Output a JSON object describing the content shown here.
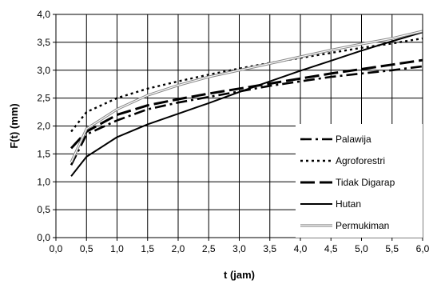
{
  "chart_data": {
    "type": "line",
    "xlabel": "t (jam)",
    "ylabel": "F(t) (mm)",
    "xlim": [
      0,
      6
    ],
    "ylim": [
      0,
      4
    ],
    "x_ticks": [
      "0,0",
      "0,5",
      "1,0",
      "1,5",
      "2,0",
      "2,5",
      "3,0",
      "3,5",
      "4,0",
      "4,5",
      "5,0",
      "5,5",
      "6,0"
    ],
    "y_ticks": [
      "0,0",
      "0,5",
      "1,0",
      "1,5",
      "2,0",
      "2,5",
      "3,0",
      "3,5",
      "4,0"
    ],
    "grid": true,
    "legend_position": "bottom-right",
    "series": [
      {
        "name": "Palawija",
        "style": "dash-dot",
        "color": "#000000",
        "x": [
          0.25,
          0.5,
          1.0,
          1.5,
          2.0,
          2.5,
          3.0,
          3.5,
          4.0,
          4.5,
          5.0,
          5.5,
          6.0
        ],
        "y": [
          1.3,
          1.85,
          2.1,
          2.3,
          2.42,
          2.52,
          2.62,
          2.72,
          2.8,
          2.88,
          2.94,
          3.0,
          3.07
        ]
      },
      {
        "name": "Agroforestri",
        "style": "dotted",
        "color": "#000000",
        "x": [
          0.25,
          0.5,
          1.0,
          1.5,
          2.0,
          2.5,
          3.0,
          3.5,
          4.0,
          4.5,
          5.0,
          5.5,
          6.0
        ],
        "y": [
          1.9,
          2.25,
          2.5,
          2.67,
          2.8,
          2.92,
          3.03,
          3.13,
          3.22,
          3.31,
          3.4,
          3.48,
          3.57
        ]
      },
      {
        "name": "Tidak Digarap",
        "style": "long-dash",
        "color": "#000000",
        "x": [
          0.25,
          0.5,
          1.0,
          1.5,
          2.0,
          2.5,
          3.0,
          3.5,
          4.0,
          4.5,
          5.0,
          5.5,
          6.0
        ],
        "y": [
          1.6,
          1.9,
          2.2,
          2.37,
          2.48,
          2.58,
          2.67,
          2.76,
          2.85,
          2.94,
          3.02,
          3.1,
          3.18
        ]
      },
      {
        "name": "Hutan",
        "style": "solid",
        "color": "#000000",
        "x": [
          0.25,
          0.5,
          1.0,
          1.5,
          2.0,
          2.5,
          3.0,
          3.5,
          4.0,
          4.5,
          5.0,
          5.5,
          6.0
        ],
        "y": [
          1.1,
          1.45,
          1.8,
          2.03,
          2.22,
          2.41,
          2.61,
          2.8,
          2.99,
          3.17,
          3.35,
          3.52,
          3.68
        ]
      },
      {
        "name": "Permukiman",
        "style": "double",
        "color": "#888888",
        "x": [
          0.25,
          0.5,
          1.0,
          1.5,
          2.0,
          2.5,
          3.0,
          3.5,
          4.0,
          4.5,
          5.0,
          5.5,
          6.0
        ],
        "y": [
          1.35,
          1.95,
          2.3,
          2.55,
          2.73,
          2.88,
          3.0,
          3.12,
          3.24,
          3.36,
          3.47,
          3.57,
          3.7
        ]
      }
    ]
  }
}
